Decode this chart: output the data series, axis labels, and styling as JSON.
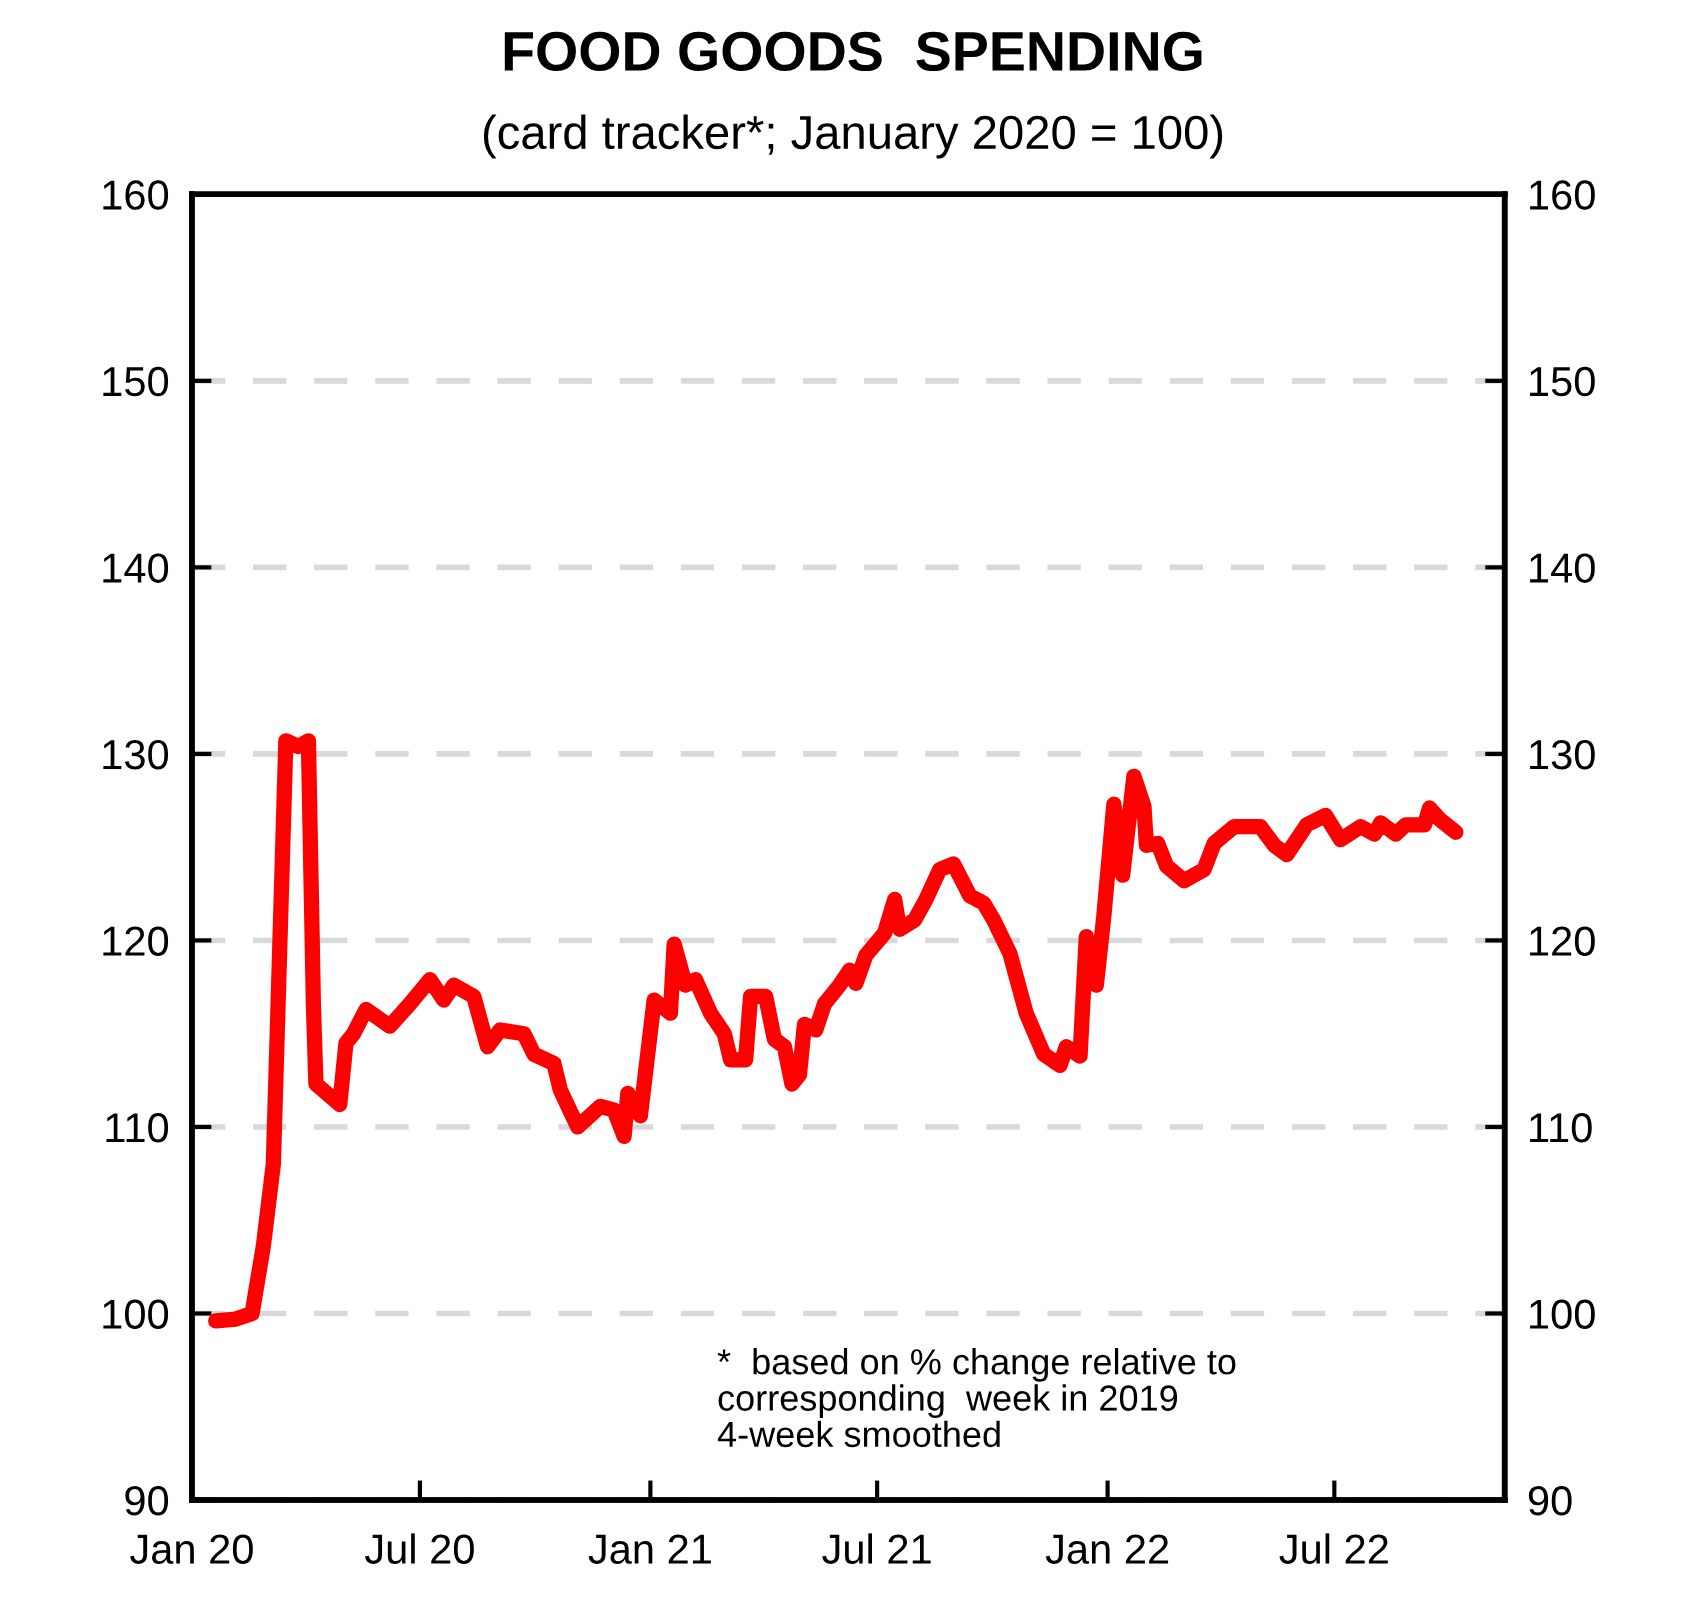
{
  "chart_data": {
    "type": "line",
    "title": "FOOD GOODS  SPENDING",
    "subtitle": "(card tracker*; January 2020 = 100)",
    "annotations": [
      "*  based on % change relative to\ncorresponding  week in 2019\n4-week smoothed"
    ],
    "x": [
      "2020-01-20",
      "2020-02-05",
      "2020-02-18",
      "2020-02-27",
      "2020-03-06",
      "2020-03-16",
      "2020-03-26",
      "2020-04-03",
      "2020-04-07",
      "2020-04-09",
      "2020-04-28",
      "2020-05-03",
      "2020-05-09",
      "2020-05-19",
      "2020-06-07",
      "2020-06-23",
      "2020-07-09",
      "2020-07-20",
      "2020-07-28",
      "2020-08-13",
      "2020-08-24",
      "2020-09-03",
      "2020-09-22",
      "2020-09-30",
      "2020-10-16",
      "2020-10-21",
      "2020-11-04",
      "2020-11-22",
      "2020-12-03",
      "2020-12-11",
      "2020-12-14",
      "2020-12-24",
      "2021-01-04",
      "2021-01-17",
      "2021-01-20",
      "2021-01-29",
      "2021-02-06",
      "2021-02-18",
      "2021-03-01",
      "2021-03-06",
      "2021-03-18",
      "2021-03-22",
      "2021-04-03",
      "2021-04-10",
      "2021-04-18",
      "2021-04-24",
      "2021-04-30",
      "2021-05-04",
      "2021-05-13",
      "2021-05-20",
      "2021-06-01",
      "2021-06-09",
      "2021-06-14",
      "2021-06-22",
      "2021-07-07",
      "2021-07-15",
      "2021-07-19",
      "2021-07-31",
      "2021-08-09",
      "2021-08-20",
      "2021-08-31",
      "2021-09-13",
      "2021-09-24",
      "2021-10-02",
      "2021-10-15",
      "2021-10-28",
      "2021-11-11",
      "2021-11-24",
      "2021-11-29",
      "2021-12-10",
      "2021-12-15",
      "2021-12-23",
      "2021-12-29",
      "2022-01-06",
      "2022-01-13",
      "2022-01-22",
      "2022-01-30",
      "2022-02-01",
      "2022-02-10",
      "2022-02-17",
      "2022-03-03",
      "2022-03-19",
      "2022-03-27",
      "2022-04-12",
      "2022-05-03",
      "2022-05-14",
      "2022-05-24",
      "2022-06-09",
      "2022-06-24",
      "2022-07-06",
      "2022-07-22",
      "2022-08-02",
      "2022-08-07",
      "2022-08-19",
      "2022-08-27",
      "2022-09-11",
      "2022-09-15",
      "2022-09-23",
      "2022-10-06"
    ],
    "series": [
      {
        "color": "#ff0000",
        "values": [
          99.6,
          99.7,
          100,
          103.6,
          108,
          130.7,
          130.4,
          130.7,
          116.5,
          112.3,
          111.2,
          114.5,
          115,
          116.3,
          115.4,
          116.6,
          117.9,
          116.8,
          117.6,
          117,
          114.3,
          115.2,
          115,
          113.9,
          113.4,
          112,
          110,
          111.1,
          110.9,
          109.5,
          111.8,
          110.6,
          116.8,
          116.1,
          119.8,
          117.6,
          117.9,
          116.1,
          115,
          113.6,
          113.6,
          117,
          117,
          114.7,
          114.3,
          112.3,
          112.8,
          115.5,
          115.2,
          116.6,
          117.6,
          118.4,
          117.7,
          119.2,
          120.4,
          122.2,
          120.6,
          121.1,
          122.2,
          123.8,
          124.1,
          122.4,
          122,
          121.1,
          119.3,
          116.1,
          113.9,
          113.3,
          114.3,
          113.8,
          120.2,
          117.6,
          121.3,
          127.3,
          123.5,
          128.8,
          127.2,
          125.1,
          125.2,
          124,
          123.2,
          123.8,
          125.2,
          126.1,
          126.1,
          125.1,
          124.6,
          126.2,
          126.7,
          125.4,
          126.1,
          125.7,
          126.3,
          125.7,
          126.2,
          126.2,
          127.1,
          126.5,
          125.8
        ]
      }
    ],
    "xlim": [
      "2020-01-01",
      "2022-11-14"
    ],
    "xticks": [
      {
        "value": "2020-01-01",
        "label": "Jan 20"
      },
      {
        "value": "2020-07-01",
        "label": "Jul 20"
      },
      {
        "value": "2021-01-01",
        "label": "Jan 21"
      },
      {
        "value": "2021-07-01",
        "label": "Jul 21"
      },
      {
        "value": "2022-01-01",
        "label": "Jan 22"
      },
      {
        "value": "2022-07-01",
        "label": "Jul 22"
      }
    ],
    "ylim": [
      90,
      160
    ],
    "yticks": [
      90,
      100,
      110,
      120,
      130,
      140,
      150,
      160
    ],
    "y2lim": [
      90,
      160
    ],
    "y2ticks": [
      90,
      100,
      110,
      120,
      130,
      140,
      150,
      160
    ],
    "grid": "y",
    "legend": false,
    "marker": "none",
    "line_style": "solid"
  }
}
